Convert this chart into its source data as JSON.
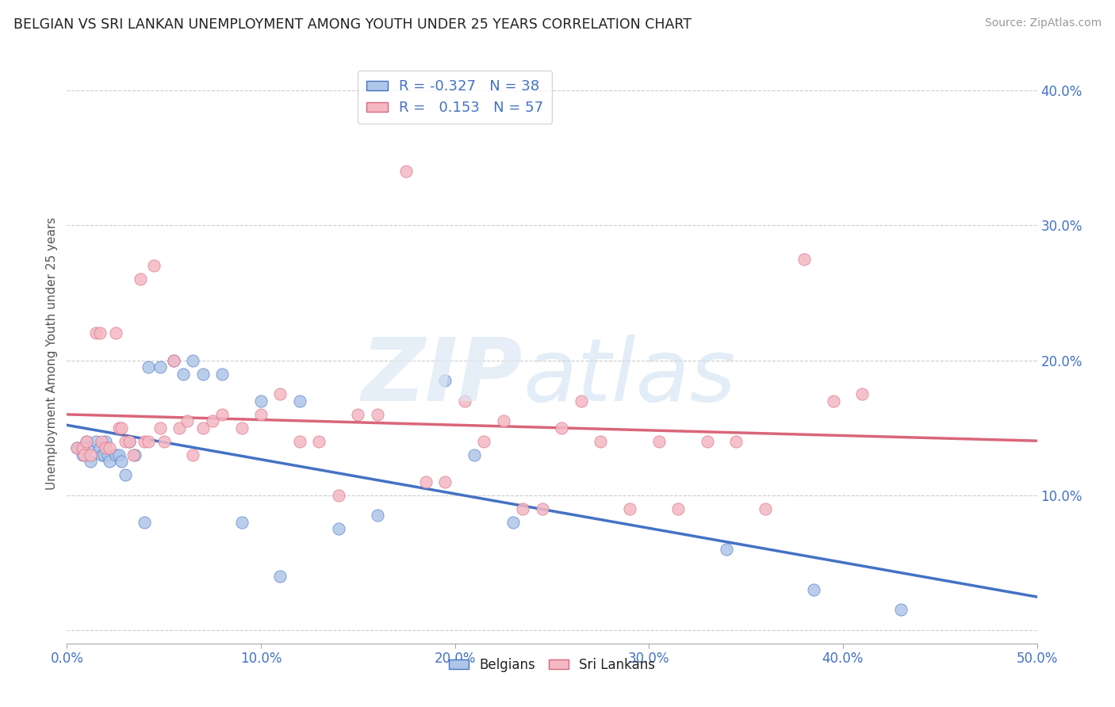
{
  "title": "BELGIAN VS SRI LANKAN UNEMPLOYMENT AMONG YOUTH UNDER 25 YEARS CORRELATION CHART",
  "source": "Source: ZipAtlas.com",
  "ylabel": "Unemployment Among Youth under 25 years",
  "xlim": [
    0.0,
    0.5
  ],
  "ylim": [
    -0.01,
    0.42
  ],
  "yticks": [
    0.0,
    0.1,
    0.2,
    0.3,
    0.4
  ],
  "xticks": [
    0.0,
    0.1,
    0.2,
    0.3,
    0.4,
    0.5
  ],
  "xtick_labels": [
    "0.0%",
    "10.0%",
    "20.0%",
    "30.0%",
    "40.0%",
    "50.0%"
  ],
  "ytick_labels": [
    "",
    "10.0%",
    "20.0%",
    "30.0%",
    "40.0%"
  ],
  "belgian_color": "#aec6e8",
  "srilankan_color": "#f4b8c4",
  "belgian_line_color": "#4472c4",
  "srilankan_line_color": "#d9667a",
  "legend_R_belgian": "-0.327",
  "legend_N_belgian": "38",
  "legend_R_srilankan": "0.153",
  "legend_N_srilankan": "57",
  "belgian_x": [
    0.005,
    0.008,
    0.01,
    0.011,
    0.012,
    0.015,
    0.017,
    0.018,
    0.019,
    0.02,
    0.021,
    0.022,
    0.025,
    0.027,
    0.028,
    0.03,
    0.032,
    0.035,
    0.04,
    0.042,
    0.048,
    0.055,
    0.06,
    0.065,
    0.07,
    0.08,
    0.09,
    0.1,
    0.11,
    0.12,
    0.14,
    0.16,
    0.195,
    0.21,
    0.23,
    0.34,
    0.385,
    0.43
  ],
  "belgian_y": [
    0.135,
    0.13,
    0.14,
    0.135,
    0.125,
    0.14,
    0.135,
    0.13,
    0.13,
    0.14,
    0.13,
    0.125,
    0.13,
    0.13,
    0.125,
    0.115,
    0.14,
    0.13,
    0.08,
    0.195,
    0.195,
    0.2,
    0.19,
    0.2,
    0.19,
    0.19,
    0.08,
    0.17,
    0.04,
    0.17,
    0.075,
    0.085,
    0.185,
    0.13,
    0.08,
    0.06,
    0.03,
    0.015
  ],
  "srilankan_x": [
    0.005,
    0.008,
    0.009,
    0.01,
    0.012,
    0.015,
    0.017,
    0.018,
    0.02,
    0.022,
    0.025,
    0.027,
    0.028,
    0.03,
    0.032,
    0.034,
    0.038,
    0.04,
    0.042,
    0.045,
    0.048,
    0.05,
    0.055,
    0.058,
    0.062,
    0.065,
    0.07,
    0.075,
    0.08,
    0.09,
    0.1,
    0.11,
    0.12,
    0.13,
    0.14,
    0.15,
    0.16,
    0.175,
    0.185,
    0.195,
    0.205,
    0.215,
    0.225,
    0.235,
    0.245,
    0.255,
    0.265,
    0.275,
    0.29,
    0.305,
    0.315,
    0.33,
    0.345,
    0.36,
    0.38,
    0.395,
    0.41
  ],
  "srilankan_y": [
    0.135,
    0.135,
    0.13,
    0.14,
    0.13,
    0.22,
    0.22,
    0.14,
    0.135,
    0.135,
    0.22,
    0.15,
    0.15,
    0.14,
    0.14,
    0.13,
    0.26,
    0.14,
    0.14,
    0.27,
    0.15,
    0.14,
    0.2,
    0.15,
    0.155,
    0.13,
    0.15,
    0.155,
    0.16,
    0.15,
    0.16,
    0.175,
    0.14,
    0.14,
    0.1,
    0.16,
    0.16,
    0.34,
    0.11,
    0.11,
    0.17,
    0.14,
    0.155,
    0.09,
    0.09,
    0.15,
    0.17,
    0.14,
    0.09,
    0.14,
    0.09,
    0.14,
    0.14,
    0.09,
    0.275,
    0.17,
    0.175
  ]
}
